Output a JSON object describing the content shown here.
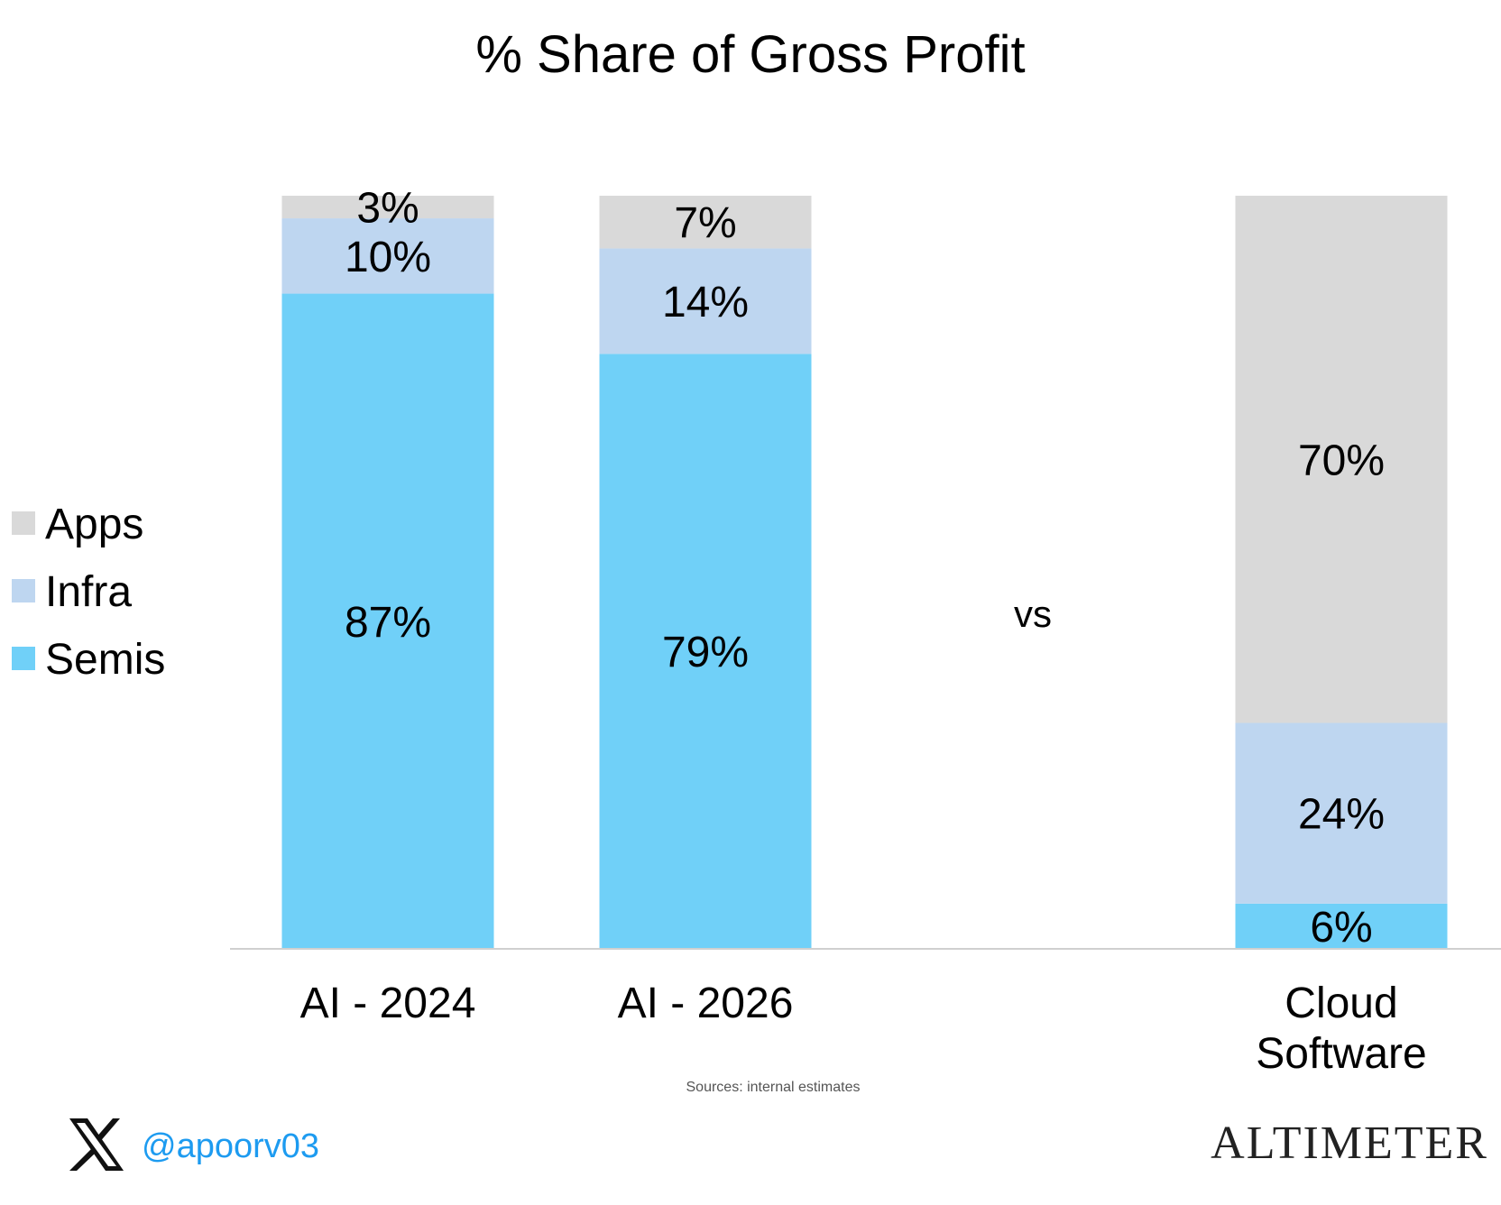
{
  "chart_data": {
    "type": "bar",
    "stacked": true,
    "title": "% Share of Gross Profit",
    "categories": [
      {
        "label_lines": [
          "AI - 2024"
        ]
      },
      {
        "label_lines": [
          "AI - 2026"
        ]
      },
      {
        "label_lines": [
          "Cloud",
          "Software"
        ]
      }
    ],
    "series": [
      {
        "name": "Semis",
        "color": "#70d0f8",
        "values": [
          87,
          79,
          6
        ],
        "labels": [
          "87%",
          "79%",
          "6%"
        ]
      },
      {
        "name": "Infra",
        "color": "#bed6f0",
        "values": [
          10,
          14,
          24
        ],
        "labels": [
          "10%",
          "14%",
          "24%"
        ]
      },
      {
        "name": "Apps",
        "color": "#d9d9d9",
        "values": [
          3,
          7,
          70
        ],
        "labels": [
          "3%",
          "7%",
          "70%"
        ]
      }
    ],
    "legend_order": [
      "Apps",
      "Infra",
      "Semis"
    ],
    "legend_position": "left",
    "separator_text": "vs",
    "ylim": [
      0,
      100
    ],
    "xlabel": "",
    "ylabel": "",
    "grid": false
  },
  "footer": {
    "source_note": "Sources: internal estimates",
    "handle": "@apoorv03",
    "brand": "ALTIMETER"
  }
}
